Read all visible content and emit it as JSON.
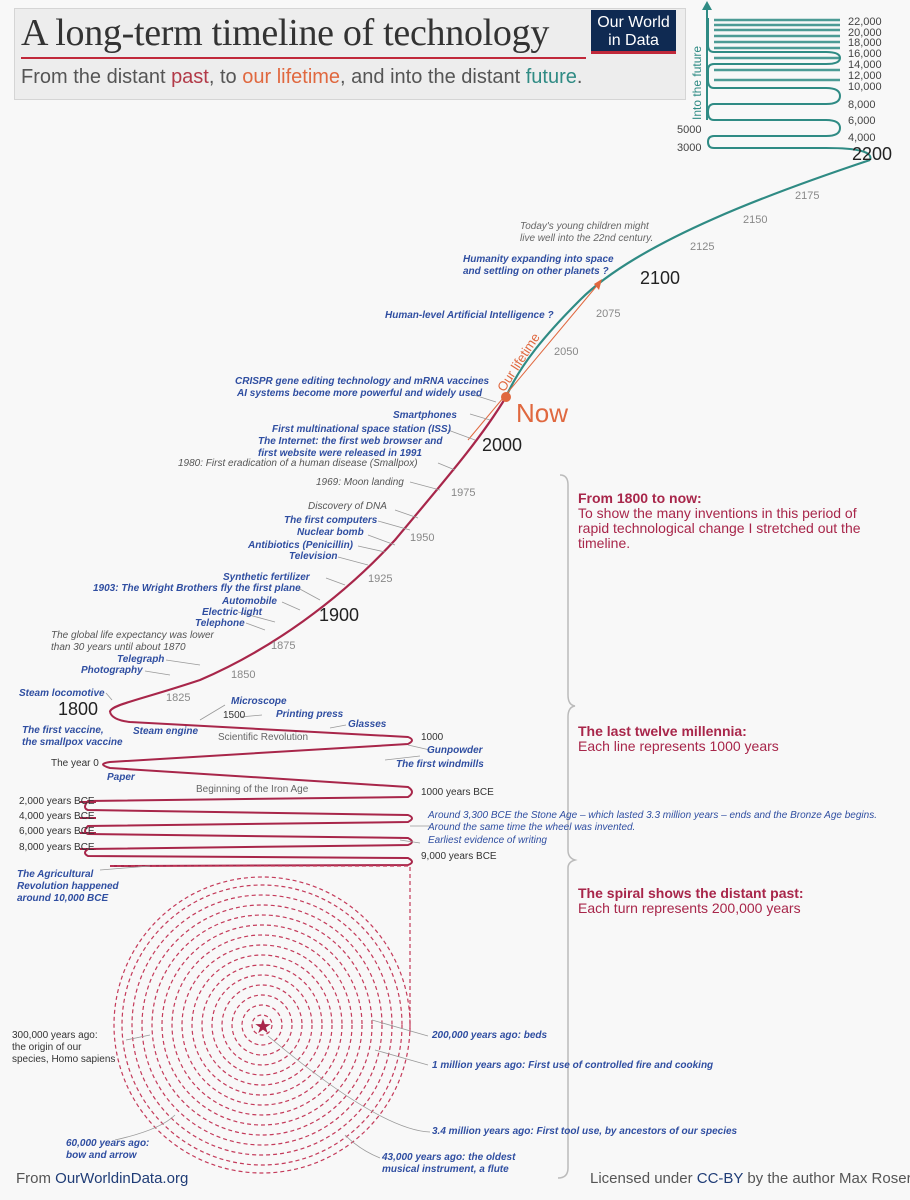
{
  "header": {
    "title": "A long-term timeline of technology",
    "subtitle_a": "From the distant ",
    "subtitle_past": "past",
    "subtitle_b": ", to ",
    "subtitle_life": "our lifetime",
    "subtitle_c": ", and into the distant ",
    "subtitle_future": "future",
    "subtitle_d": ".",
    "logo_line1": "Our World",
    "logo_line2": "in Data"
  },
  "colors": {
    "past": "#a8264a",
    "lifetime": "#e0683f",
    "future": "#2f8b84",
    "event_text": "#2f4ea1"
  },
  "future_axis": {
    "label": "Into the future",
    "ticks_right": [
      "22,000",
      "20,000",
      "18,000",
      "16,000",
      "14,000",
      "12,000",
      "10,000",
      "8,000",
      "6,000",
      "4,000"
    ],
    "ticks_left": [
      "5000",
      "3000"
    ],
    "year_2200": "2200",
    "year_2175": "2175",
    "year_2150": "2150",
    "year_2125": "2125",
    "year_2100": "2100",
    "year_2075": "2075",
    "year_2050": "2050"
  },
  "now_label": "Now",
  "lifetime_label": "Our lifetime",
  "recent_years": {
    "y2000": "2000",
    "y1975": "1975",
    "y1950": "1950",
    "y1925": "1925",
    "y1900": "1900",
    "y1875": "1875",
    "y1850": "1850",
    "y1825": "1825",
    "y1800": "1800"
  },
  "events": {
    "kids": "Today's young children might\nlive well into the 22nd century.",
    "space": "Humanity expanding into space\nand settling on other planets ?",
    "ai": "Human-level Artificial Intelligence ?",
    "crispr": "CRISPR gene editing technology and mRNA vaccines",
    "aisys": "AI systems become more powerful and widely used",
    "smartphones": "Smartphones",
    "iss": "First multinational space station (ISS)",
    "internet": "The Internet: the first web browser and\nfirst website were released in 1991",
    "smallpox": "1980: First eradication of a human disease (Smallpox)",
    "moon": "1969: Moon landing",
    "dna": "Discovery of DNA",
    "computers": "The first computers",
    "nuclear": "Nuclear bomb",
    "antibiotics": "Antibiotics (Penicillin)",
    "television": "Television",
    "fertilizer": "Synthetic fertilizer",
    "wright": "1903: The Wright Brothers fly the first plane",
    "automobile": "Automobile",
    "electric": "Electric light",
    "telephone": "Telephone",
    "lifeexp": "The global life expectancy was lower\nthan 30 years until about 1870",
    "telegraph": "Telegraph",
    "photography": "Photography",
    "steamloco": "Steam locomotive",
    "vaccine": "The first vaccine,\nthe smallpox vaccine",
    "steamengine": "Steam engine",
    "microscope": "Microscope",
    "y1500": "1500",
    "printing": "Printing press",
    "glasses": "Glasses",
    "scirev": "Scientific Revolution",
    "y1000": "1000",
    "gunpowder": "Gunpowder",
    "windmills": "The first windmills",
    "year0": "The year 0",
    "paper": "Paper",
    "ironage": "Beginning of the Iron Age",
    "bce1000": "1000 years BCE",
    "bce2000": "2,000 years BCE",
    "bce4000": "4,000 years BCE",
    "bce6000": "6,000 years BCE",
    "bce8000": "8,000 years BCE",
    "bce9000": "9,000 years BCE",
    "bronze": "Around 3,300 BCE the Stone Age – which lasted 3.3 million years – ends and the Bronze Age begins.\nAround the same time the wheel was invented.",
    "writing": "Earliest evidence of writing",
    "agri": "The Agricultural\nRevolution happened\naround 10,000 BCE",
    "origin": "300,000 years ago:\nthe origin of our\nspecies, Homo sapiens",
    "beds": "200,000 years ago: beds",
    "fire": "1 million years ago: First use of controlled fire and cooking",
    "tool": "3.4 million years ago: First tool use, by ancestors of our species",
    "bow": "60,000 years ago:\nbow and arrow",
    "flute": "43,000 years ago: the oldest\nmusical instrument, a flute"
  },
  "sections": {
    "s1_head": "From 1800 to now:",
    "s1_body": "To show the many inventions in this period of rapid technological change I stretched out the timeline.",
    "s2_head": "The last twelve millennia:",
    "s2_body": "Each line represents 1000 years",
    "s3_head": "The spiral shows the distant past:",
    "s3_body": "Each turn represents 200,000 years"
  },
  "footer": {
    "left_prefix": "From ",
    "left_link": "OurWorldinData.org",
    "right_prefix": "Licensed under ",
    "right_link": "CC-BY",
    "right_suffix": " by the author Max Roser"
  }
}
